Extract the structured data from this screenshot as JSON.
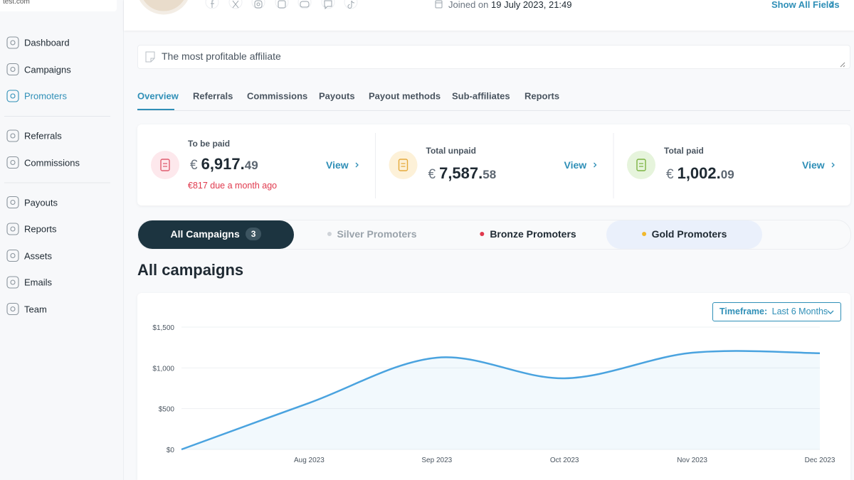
{
  "sidebar": {
    "site": "test.com",
    "nav": [
      [
        "Dashboard",
        "Campaigns",
        "Promoters"
      ],
      [
        "Referrals",
        "Commissions"
      ],
      [
        "Payouts",
        "Reports",
        "Assets",
        "Emails",
        "Team"
      ]
    ]
  },
  "header": {
    "joined_label": "Joined on",
    "joined_date": "19 July 2023, 21:49",
    "show_all": "Show All Fields"
  },
  "note": "The most profitable affiliate",
  "tabs": [
    "Overview",
    "Referrals",
    "Commissions",
    "Payouts",
    "Payout methods",
    "Sub-affiliates",
    "Reports"
  ],
  "cards": [
    {
      "title": "To be paid",
      "currency": "€",
      "whole": "6,917.",
      "cents": "49",
      "note": "€817 due a month ago",
      "action": "View"
    },
    {
      "title": "Total unpaid",
      "currency": "€",
      "whole": "7,587.",
      "cents": "58",
      "action": "View"
    },
    {
      "title": "Total paid",
      "currency": "€",
      "whole": "1,002.",
      "cents": "09",
      "action": "View"
    }
  ],
  "segments": [
    {
      "label": "All Campaigns",
      "badge": 3
    },
    {
      "label": "Silver Promoters"
    },
    {
      "label": "Bronze Promoters"
    },
    {
      "label": "Gold Promoters"
    }
  ],
  "section_title": "All campaigns",
  "timeframe": {
    "label": "Timeframe:",
    "value": "Last 6 Months"
  },
  "chart_data": {
    "type": "line",
    "categories": [
      null,
      "Aug 2023",
      "Sep 2023",
      "Oct 2023",
      "Nov 2023",
      "Dec 2023"
    ],
    "series": [
      {
        "name": null,
        "color": "#4aa3df",
        "values": [
          0,
          570,
          1125,
          872,
          1186,
          1180
        ]
      }
    ],
    "ylim": [
      0,
      1500
    ],
    "yticks": [
      {
        "value": 0,
        "label": "$0"
      },
      {
        "value": 500,
        "label": "$500"
      },
      {
        "value": 1000,
        "label": "$1,000"
      },
      {
        "value": 1500,
        "label": "$1,500"
      }
    ],
    "grid": true,
    "area": true
  }
}
